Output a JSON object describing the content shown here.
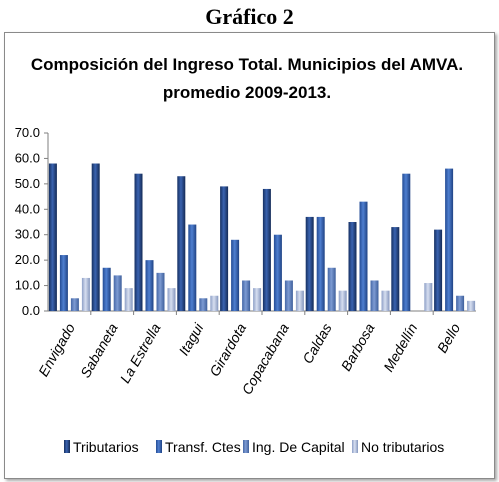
{
  "heading": "Gráfico 2",
  "chart_data": {
    "type": "bar",
    "title_lines": [
      "Composición  del Ingreso Total. Municipios del AMVA.",
      "promedio 2009-2013."
    ],
    "categories": [
      "Envigado",
      "Sabaneta",
      "La Estrella",
      "Itagui",
      "Girardota",
      "Copacabana",
      "Caldas",
      "Barbosa",
      "Medellín",
      "Bello"
    ],
    "series": [
      {
        "name": "Tributarios",
        "color": "#1f3f7a",
        "values": [
          58,
          58,
          54,
          53,
          49,
          48,
          37,
          35,
          33,
          32
        ]
      },
      {
        "name": "Transf. Ctes",
        "color": "#2e5aa6",
        "values": [
          22,
          17,
          20,
          34,
          28,
          30,
          37,
          43,
          54,
          56
        ]
      },
      {
        "name": "Ing. De Capital",
        "color": "#5a7fc0",
        "values": [
          5,
          14,
          15,
          5,
          12,
          12,
          17,
          12,
          0,
          6
        ]
      },
      {
        "name": "No tributarios",
        "color": "#aab9d9",
        "values": [
          13,
          9,
          9,
          6,
          9,
          8,
          8,
          8,
          11,
          4
        ]
      }
    ],
    "ylim": [
      0,
      70
    ],
    "yticks": [
      "0.0",
      "10.0",
      "20.0",
      "30.0",
      "40.0",
      "50.0",
      "60.0",
      "70.0"
    ],
    "grid": false,
    "legend_position": "bottom"
  }
}
